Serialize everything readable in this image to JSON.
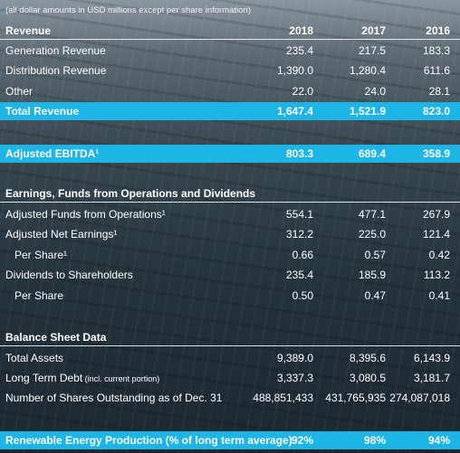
{
  "note": "(all dollar amounts in USD millions except per share information)",
  "revenue": {
    "title": "Revenue",
    "years": [
      "2018",
      "2017",
      "2016"
    ],
    "rows": [
      {
        "label": "Generation Revenue",
        "values": [
          "235.4",
          "217.5",
          "183.3"
        ]
      },
      {
        "label": "Distribution Revenue",
        "values": [
          "1,390.0",
          "1,280.4",
          "611.6"
        ]
      },
      {
        "label": "Other",
        "values": [
          "22.0",
          "24.0",
          "28.1"
        ]
      }
    ],
    "total": {
      "label": "Total Revenue",
      "values": [
        "1,647.4",
        "1,521.9",
        "823.0"
      ]
    }
  },
  "ebitda": {
    "label": "Adjusted EBITDA¹",
    "values": [
      "803.3",
      "689.4",
      "358.9"
    ]
  },
  "earnings": {
    "title": "Earnings, Funds from Operations and Dividends",
    "rows": [
      {
        "label": "Adjusted Funds from Operations¹",
        "values": [
          "554.1",
          "477.1",
          "267.9"
        ]
      },
      {
        "label": "Adjusted Net Earnings¹",
        "values": [
          "312.2",
          "225.0",
          "121.4"
        ]
      },
      {
        "label": "Per Share¹",
        "values": [
          "0.66",
          "0.57",
          "0.42"
        ]
      },
      {
        "label": "Dividends to Shareholders",
        "values": [
          "235.4",
          "185.9",
          "113.2"
        ]
      },
      {
        "label": "Per Share",
        "values": [
          "0.50",
          "0.47",
          "0.41"
        ]
      }
    ]
  },
  "balance": {
    "title": "Balance Sheet Data",
    "rows": [
      {
        "label": "Total Assets",
        "values": [
          "9,389.0",
          "8,395.6",
          "6,143.9"
        ]
      },
      {
        "label": "Long Term Debt",
        "label_note": "(incl. current portion)",
        "values": [
          "3,337.3",
          "3,080.5",
          "3,181.7"
        ]
      },
      {
        "label": "Number of Shares Outstanding as of Dec. 31",
        "values": [
          "488,851,433",
          "431,765,935",
          "274,087,018"
        ]
      }
    ]
  },
  "renewable": {
    "label": "Renewable Energy Production (% of long term average)",
    "values": [
      "92%",
      "98%",
      "94%"
    ]
  }
}
